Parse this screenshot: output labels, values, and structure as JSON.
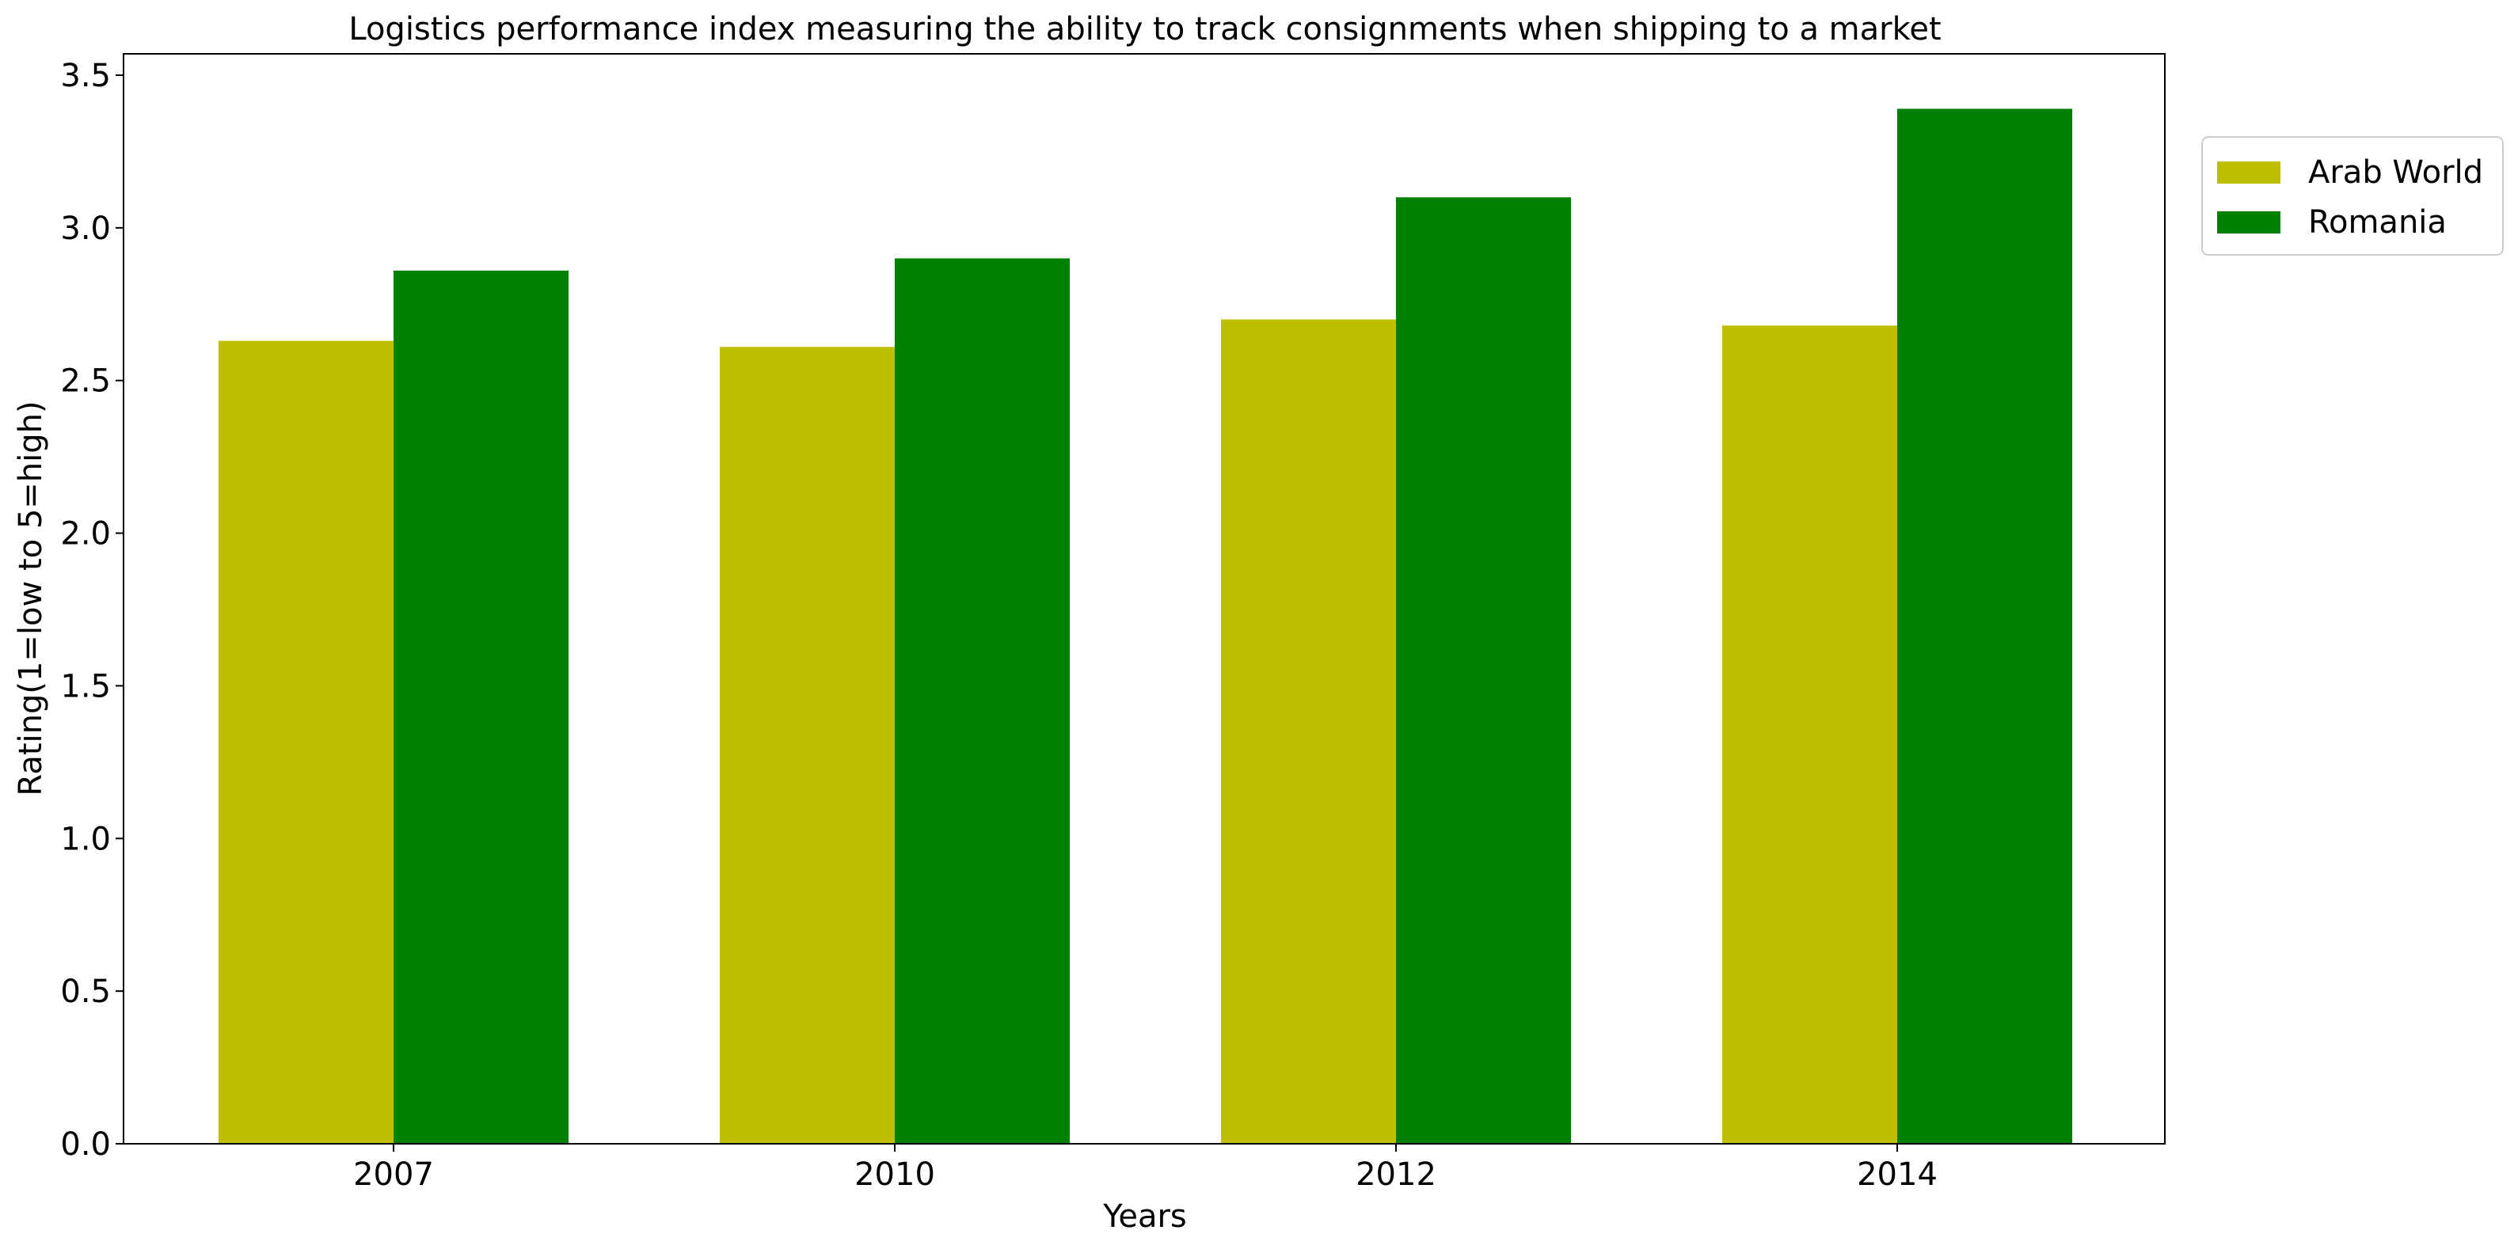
{
  "chart_data": {
    "type": "bar",
    "title": "Logistics performance index measuring the ability to track consignments when shipping to a market",
    "xlabel": "Years",
    "ylabel": "Rating(1=low to 5=high)",
    "categories": [
      "2007",
      "2010",
      "2012",
      "2014"
    ],
    "ylim": [
      0,
      3.57
    ],
    "yticks": [
      0.0,
      0.5,
      1.0,
      1.5,
      2.0,
      2.5,
      3.0,
      3.5
    ],
    "ytick_labels": [
      "0.0",
      "0.5",
      "1.0",
      "1.5",
      "2.0",
      "2.5",
      "3.0",
      "3.5"
    ],
    "grid": false,
    "legend_position": "outside top-right",
    "series": [
      {
        "name": "Arab World",
        "color": "#bfbf00",
        "values": [
          2.63,
          2.61,
          2.7,
          2.68
        ]
      },
      {
        "name": "Romania",
        "color": "#008000",
        "values": [
          2.86,
          2.9,
          3.1,
          3.39
        ]
      }
    ]
  }
}
